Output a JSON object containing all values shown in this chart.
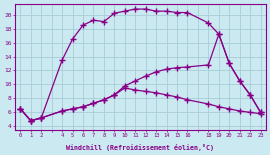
{
  "xlabel": "Windchill (Refroidissement éolien,°C)",
  "bg_color": "#cbe9f0",
  "grid_color": "#a8cdd8",
  "line_color": "#880088",
  "xlim": [
    -0.5,
    23.5
  ],
  "ylim": [
    3.5,
    21.5
  ],
  "yticks": [
    4,
    6,
    8,
    10,
    12,
    14,
    16,
    18,
    20
  ],
  "xtick_labels": [
    "0",
    "1",
    "2",
    "",
    "4",
    "5",
    "6",
    "7",
    "8",
    "9",
    "10",
    "11",
    "12",
    "13",
    "14",
    "15",
    "16",
    "",
    "18",
    "19",
    "20",
    "21",
    "22",
    "23"
  ],
  "curve1_x": [
    0,
    1,
    2,
    4,
    5,
    6,
    7,
    8,
    9,
    10,
    11,
    12,
    13,
    14,
    15,
    16,
    18,
    19,
    20,
    21,
    22,
    23
  ],
  "curve1_y": [
    6.5,
    4.8,
    5.2,
    13.5,
    16.5,
    18.5,
    19.2,
    19.0,
    20.2,
    20.5,
    20.8,
    20.8,
    20.5,
    20.5,
    20.3,
    20.3,
    18.8,
    17.2,
    13.0,
    10.5,
    8.5,
    6.0
  ],
  "curve2_x": [
    0,
    1,
    2,
    4,
    5,
    6,
    7,
    8,
    9,
    10,
    11,
    12,
    13,
    14,
    15,
    16,
    18,
    19,
    20,
    21,
    22,
    23
  ],
  "curve2_y": [
    6.5,
    4.8,
    5.2,
    6.2,
    6.5,
    6.8,
    7.3,
    7.8,
    8.5,
    9.5,
    9.2,
    9.0,
    8.8,
    8.5,
    8.2,
    7.8,
    7.2,
    6.8,
    6.5,
    6.2,
    6.0,
    5.8
  ],
  "curve3_x": [
    0,
    1,
    2,
    4,
    5,
    6,
    7,
    8,
    9,
    10,
    11,
    12,
    13,
    14,
    15,
    16,
    18,
    19,
    20,
    21,
    22,
    23
  ],
  "curve3_y": [
    6.5,
    4.8,
    5.2,
    6.2,
    6.5,
    6.8,
    7.3,
    7.8,
    8.5,
    9.8,
    10.5,
    11.2,
    11.8,
    12.2,
    12.4,
    12.5,
    12.8,
    17.2,
    13.0,
    10.5,
    8.5,
    6.0
  ]
}
